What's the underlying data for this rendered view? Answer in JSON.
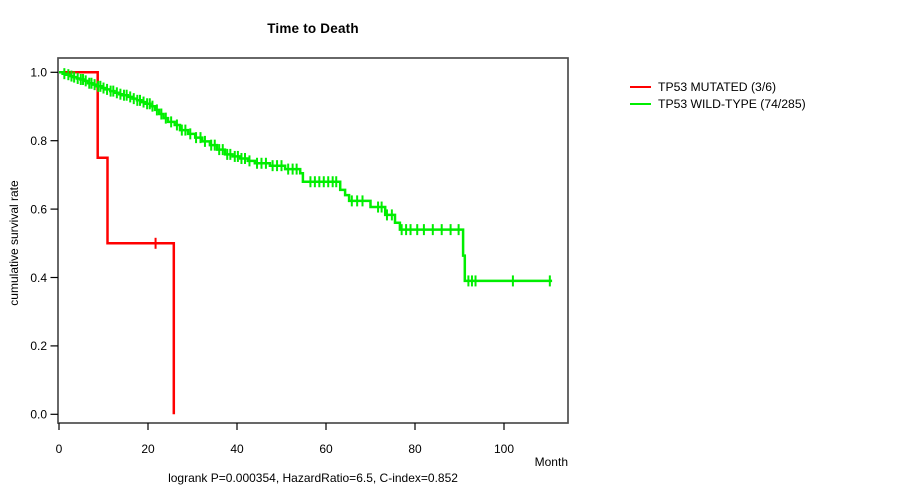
{
  "chart_data": {
    "type": "line",
    "subtype": "kaplan-meier-step-curves",
    "title": "Time to Death",
    "xlabel": "Month",
    "ylabel": "cumulative survival rate",
    "annotation": "logrank P=0.000354, HazardRatio=6.5, C-index=0.852",
    "xlim": [
      0,
      114.4
    ],
    "ylim": [
      0.0,
      1.0
    ],
    "xticks": [
      0,
      20,
      40,
      60,
      80,
      100
    ],
    "yticks": [
      0.0,
      0.2,
      0.4,
      0.6,
      0.8,
      1.0
    ],
    "grid": false,
    "legend_position": "outside-right",
    "axis_color": "#000000",
    "box_color": "#4d4d4d",
    "series": [
      {
        "name": "TP53 MUTATED (3/6)",
        "color": "#ff0000",
        "steps": [
          [
            0,
            1.0
          ],
          [
            8.7,
            0.75
          ],
          [
            10.9,
            0.5
          ],
          [
            25.8,
            0.0
          ]
        ],
        "end_month": 25.8,
        "censor_months": [
          21.7
        ]
      },
      {
        "name": "TP53 WILD-TYPE (74/285)",
        "color": "#00ee00",
        "steps": [
          [
            0,
            1.0
          ],
          [
            0.8,
            0.996
          ],
          [
            1.6,
            0.993
          ],
          [
            2.4,
            0.989
          ],
          [
            3.2,
            0.986
          ],
          [
            4.0,
            0.982
          ],
          [
            4.8,
            0.979
          ],
          [
            5.6,
            0.975
          ],
          [
            6.5,
            0.968
          ],
          [
            7.5,
            0.964
          ],
          [
            8.5,
            0.959
          ],
          [
            9.5,
            0.954
          ],
          [
            10.5,
            0.95
          ],
          [
            11.5,
            0.945
          ],
          [
            12.5,
            0.94
          ],
          [
            13.5,
            0.936
          ],
          [
            14.2,
            0.933
          ],
          [
            15.5,
            0.928
          ],
          [
            16.5,
            0.923
          ],
          [
            17.5,
            0.918
          ],
          [
            18.5,
            0.913
          ],
          [
            19.5,
            0.908
          ],
          [
            20.5,
            0.901
          ],
          [
            21.6,
            0.89
          ],
          [
            22.5,
            0.878
          ],
          [
            23.5,
            0.866
          ],
          [
            24.5,
            0.855
          ],
          [
            26,
            0.846
          ],
          [
            27.2,
            0.831
          ],
          [
            29,
            0.82
          ],
          [
            30.6,
            0.809
          ],
          [
            32.2,
            0.798
          ],
          [
            33.9,
            0.787
          ],
          [
            35.5,
            0.774
          ],
          [
            37.3,
            0.76
          ],
          [
            39,
            0.754
          ],
          [
            40.7,
            0.748
          ],
          [
            42.4,
            0.741
          ],
          [
            44,
            0.734
          ],
          [
            47.4,
            0.727
          ],
          [
            50.8,
            0.717
          ],
          [
            54.2,
            0.705
          ],
          [
            54.8,
            0.68
          ],
          [
            63.2,
            0.656
          ],
          [
            64.3,
            0.641
          ],
          [
            65.2,
            0.624
          ],
          [
            70,
            0.606
          ],
          [
            73.3,
            0.583
          ],
          [
            75.5,
            0.56
          ],
          [
            76.6,
            0.54
          ],
          [
            90.8,
            0.464
          ],
          [
            91.2,
            0.39
          ]
        ],
        "end_month": 110.8,
        "censor_months": [
          1.2,
          2.1,
          2.8,
          3.4,
          4.2,
          4.9,
          5.4,
          6.0,
          6.8,
          7.3,
          8.0,
          8.8,
          9.3,
          10.0,
          10.8,
          11.6,
          12.2,
          13.0,
          13.8,
          14.6,
          15.2,
          16.0,
          16.8,
          17.6,
          18.2,
          19.0,
          19.8,
          20.4,
          21.0,
          22.0,
          23.0,
          24.0,
          25.2,
          26.5,
          27.6,
          28.4,
          29.5,
          30.8,
          31.8,
          32.8,
          34.2,
          35.0,
          36.0,
          36.8,
          37.8,
          38.5,
          39.5,
          40.2,
          41.0,
          41.8,
          42.8,
          44.5,
          45.5,
          46.5,
          48.0,
          49.0,
          50.0,
          51.5,
          52.5,
          53.4,
          56.5,
          57.5,
          58.5,
          59.5,
          60.5,
          61.5,
          62.3,
          65.8,
          67.0,
          68.2,
          71.7,
          72.5,
          73.7,
          74.8,
          77.0,
          78.0,
          79.0,
          80.5,
          82.0,
          84.0,
          86.0,
          88.0,
          89.8,
          92.0,
          92.8,
          93.6,
          102.0,
          110.3
        ]
      }
    ]
  }
}
